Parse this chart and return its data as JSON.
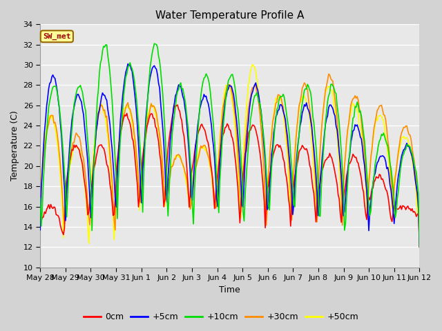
{
  "title": "Water Temperature Profile A",
  "xlabel": "Time",
  "ylabel": "Temperature (C)",
  "ylim": [
    10,
    34
  ],
  "yticks": [
    10,
    12,
    14,
    16,
    18,
    20,
    22,
    24,
    26,
    28,
    30,
    32,
    34
  ],
  "x_labels": [
    "May 28",
    "May 29",
    "May 30",
    "May 31",
    "Jun 1",
    "Jun 2",
    "Jun 3",
    "Jun 4",
    "Jun 5",
    "Jun 6",
    "Jun 7",
    "Jun 8",
    "Jun 9",
    "Jun 10",
    "Jun 11",
    "Jun 12"
  ],
  "annotation_text": "SW_met",
  "annotation_bg": "#FFFF99",
  "annotation_border": "#996600",
  "annotation_text_color": "#990000",
  "line_colors": {
    "0cm": "#FF0000",
    "+5cm": "#0000FF",
    "+10cm": "#00DD00",
    "+30cm": "#FF8C00",
    "+50cm": "#FFFF00"
  },
  "bg_color": "#E8E8E8",
  "fig_bg_color": "#D3D3D3",
  "grid_color": "#FFFFFF",
  "title_fontsize": 11,
  "axis_fontsize": 9,
  "tick_fontsize": 8
}
